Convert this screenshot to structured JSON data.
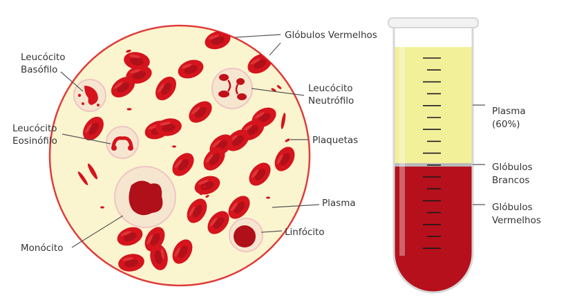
{
  "colors": {
    "plasma_fill": "#fbf5cf",
    "border": "#e03b3b",
    "red_cell": "#d5141d",
    "red_cell_dark": "#b0101a",
    "white_cell_fill": "#f6e6cf",
    "plasma_tube": "#f3f09a",
    "blood_tube": "#b5101c",
    "buffy_coat": "#b9b9b9"
  },
  "labels": {
    "globulos_vermelhos": "Glóbulos Vermelhos",
    "leucocito_basofilo_1": "Leucócito",
    "leucocito_basofilo_2": "Basófilo",
    "leucocito_neutrofilo_1": "Leucócito",
    "leucocito_neutrofilo_2": "Neutrófilo",
    "leucocito_eosinofilo_1": "Leucócito",
    "leucocito_eosinofilo_2": "Eosinófilo",
    "plaquetas": "Plaquetas",
    "plasma": "Plasma",
    "monocito": "Monócito",
    "linfocito": "Linfócito"
  },
  "tube": {
    "plasma_1": "Plasma",
    "plasma_2": "(60%)",
    "brancos_1": "Glóbulos",
    "brancos_2": "Brancos",
    "vermelhos_1": "Glóbulos",
    "vermelhos_2": "Vermelhos",
    "plasma_fraction": 0.6
  }
}
